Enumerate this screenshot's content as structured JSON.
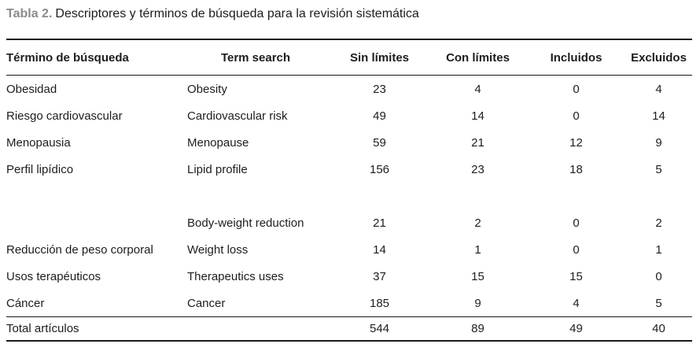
{
  "title": {
    "label": "Tabla 2.",
    "text": "Descriptores y términos de búsqueda para la revisión sistemática"
  },
  "table": {
    "columns": [
      "Término de búsqueda",
      "Term search",
      "Sin límites",
      "Con límites",
      "Incluidos",
      "Excluidos"
    ],
    "rows": [
      [
        "Obesidad",
        "Obesity",
        "23",
        "4",
        "0",
        "4"
      ],
      [
        "Riesgo cardiovascular",
        "Cardiovascular risk",
        "49",
        "14",
        "0",
        "14"
      ],
      [
        "Menopausia",
        "Menopause",
        "59",
        "21",
        "12",
        "9"
      ],
      [
        "Perfil lipídico",
        "Lipid profile",
        "156",
        "23",
        "18",
        "5"
      ],
      [
        "",
        "",
        "",
        "",
        "",
        ""
      ],
      [
        "",
        "Body-weight reduction",
        "21",
        "2",
        "0",
        "2"
      ],
      [
        "Reducción de peso corporal",
        "Weight loss",
        "14",
        "1",
        "0",
        "1"
      ],
      [
        "Usos terapéuticos",
        "Therapeutics uses",
        "37",
        "15",
        "15",
        "0"
      ],
      [
        "Cáncer",
        "Cancer",
        "185",
        "9",
        "4",
        "5"
      ]
    ],
    "total_row": [
      "Total artículos",
      "",
      "544",
      "89",
      "49",
      "40"
    ]
  },
  "colors": {
    "caption_label": "#8b8b8b",
    "text": "#1d1d1d",
    "rule": "#1a1a1a",
    "background": "#ffffff"
  }
}
